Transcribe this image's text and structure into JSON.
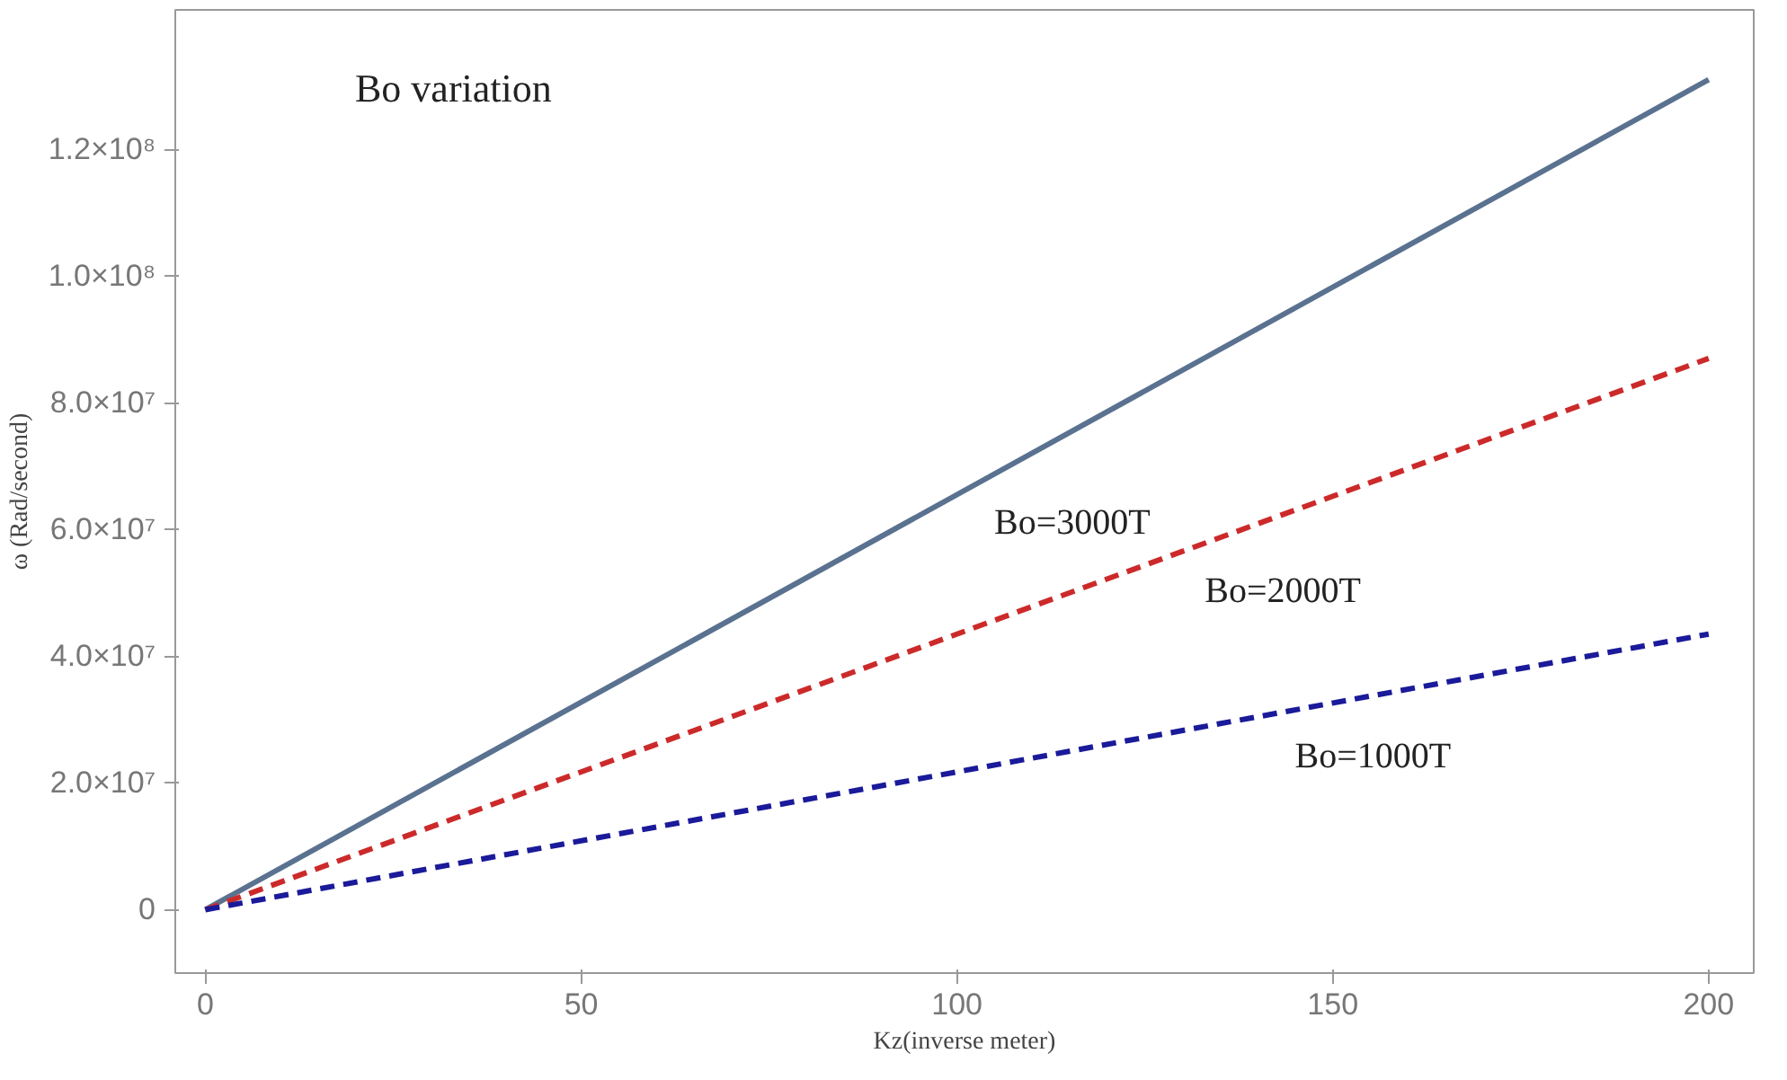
{
  "chart_data": {
    "type": "line",
    "xlabel": "Kz(inverse meter)",
    "ylabel": "ω (Rad/second)",
    "x": [
      0,
      200
    ],
    "series": [
      {
        "name": "Bo=3000T",
        "color": "#5a7290",
        "values": [
          0,
          131000000
        ],
        "line_style": "solid"
      },
      {
        "name": "Bo=2000T",
        "color": "#cc2a2a",
        "values": [
          0,
          87000000
        ],
        "line_style": "dashed"
      },
      {
        "name": "Bo=1000T",
        "color": "#1a1a9a",
        "values": [
          0,
          43500000
        ],
        "line_style": "dashed"
      }
    ],
    "annotations": [
      "Bo variation"
    ],
    "xlim": [
      -4,
      206
    ],
    "ylim": [
      -10000000,
      142000000
    ],
    "xticks": [
      0,
      50,
      100,
      150,
      200
    ],
    "yticks": [
      0,
      {
        "value": 20000000,
        "label": "2.0×10⁷"
      },
      {
        "value": 40000000,
        "label": "4.0×10⁷"
      },
      {
        "value": 60000000,
        "label": "6.0×10⁷"
      },
      {
        "value": 80000000,
        "label": "8.0×10⁷"
      },
      {
        "value": 100000000,
        "label": "1.0×10⁸"
      },
      {
        "value": 120000000,
        "label": "1.2×10⁸"
      }
    ],
    "grid": false,
    "legend": false
  }
}
